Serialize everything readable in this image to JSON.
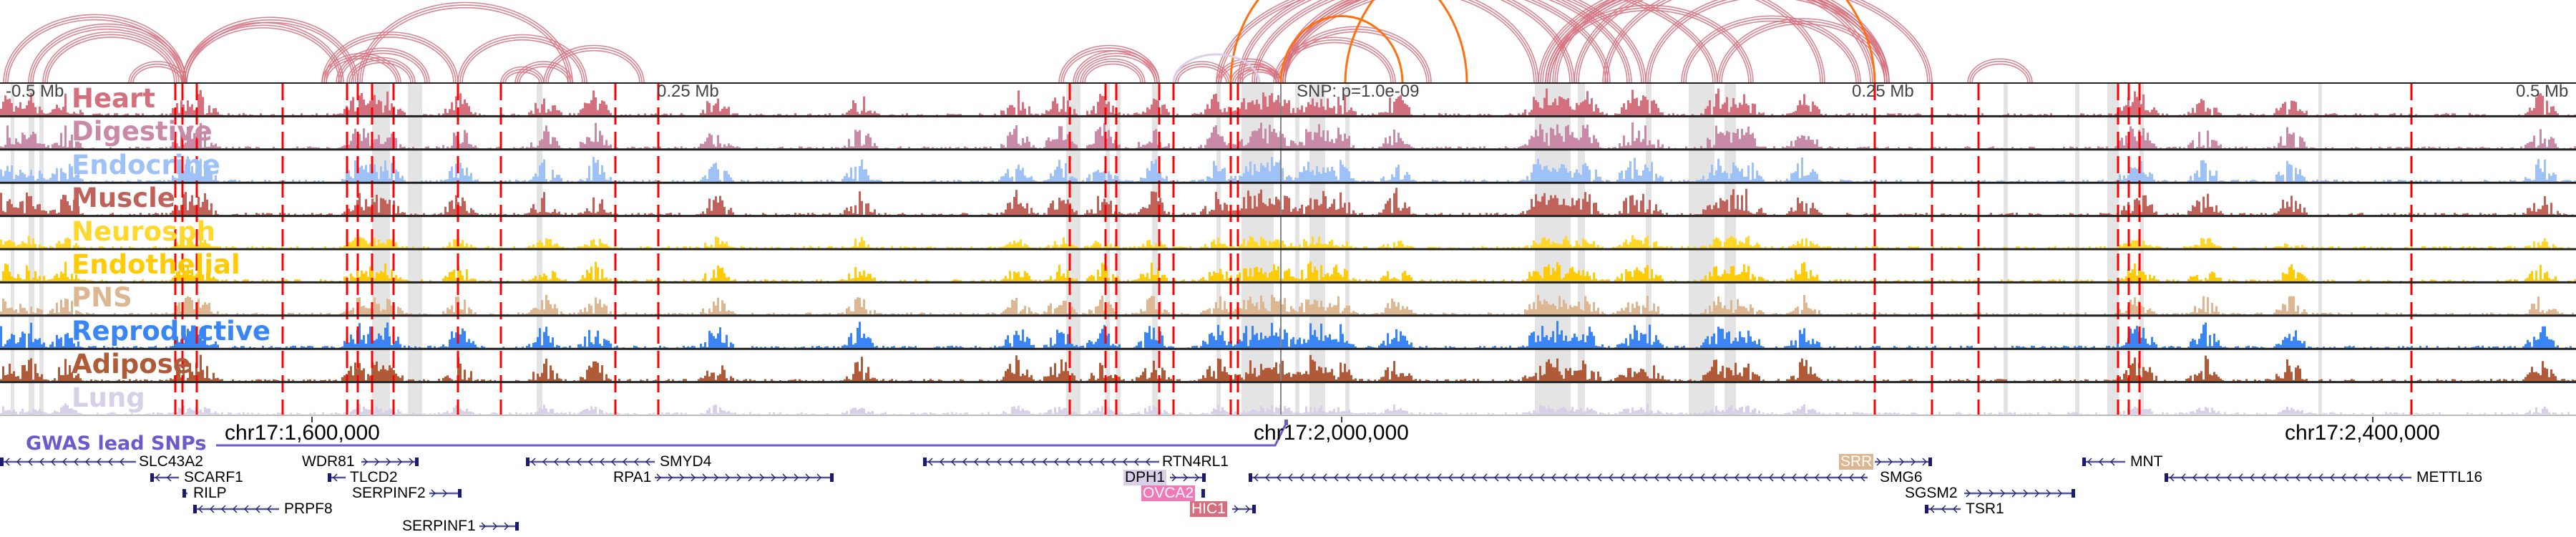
{
  "axis": {
    "left_label": "-0.5 Mb",
    "left_mid_label": "0.25 Mb",
    "snp_label": "SNP: p=1.0e-09",
    "right_mid_label": "0.25 Mb",
    "right_label": "0.5 Mb"
  },
  "tracks": [
    {
      "label": "Heart",
      "color": "#d4707e"
    },
    {
      "label": "Digestive",
      "color": "#c98aa8"
    },
    {
      "label": "Endocrine",
      "color": "#9ec1f7"
    },
    {
      "label": "Muscle",
      "color": "#c0625a"
    },
    {
      "label": "Neurosph",
      "color": "#ffd829"
    },
    {
      "label": "Endothelial",
      "color": "#ffcb05"
    },
    {
      "label": "PNS",
      "color": "#ddb791"
    },
    {
      "label": "Reproductive",
      "color": "#3a85f5"
    },
    {
      "label": "Adipose",
      "color": "#b05a38"
    },
    {
      "label": "Lung",
      "color": "#d8d0e8"
    }
  ],
  "coordinates": [
    "chr17:1,600,000",
    "chr17:2,000,000",
    "chr17:2,400,000"
  ],
  "gwas_label": "GWAS lead SNPs",
  "genes": [
    {
      "name": "SLC43A2",
      "strand": "-"
    },
    {
      "name": "SCARF1",
      "strand": "-"
    },
    {
      "name": "RILP",
      "strand": "-"
    },
    {
      "name": "PRPF8",
      "strand": "-"
    },
    {
      "name": "WDR81",
      "strand": "+"
    },
    {
      "name": "TLCD2",
      "strand": "-"
    },
    {
      "name": "SERPINF2",
      "strand": "+"
    },
    {
      "name": "SERPINF1",
      "strand": "+"
    },
    {
      "name": "SMYD4",
      "strand": "-"
    },
    {
      "name": "RPA1",
      "strand": "+"
    },
    {
      "name": "RTN4RL1",
      "strand": "-"
    },
    {
      "name": "DPH1",
      "strand": "+",
      "highlight": "#d8d0e8"
    },
    {
      "name": "OVCA2",
      "strand": "+",
      "highlight": "#f07ab8"
    },
    {
      "name": "HIC1",
      "strand": "+",
      "highlight": "#d4707e"
    },
    {
      "name": "SMG6",
      "strand": "-"
    },
    {
      "name": "SRR",
      "strand": "+",
      "highlight": "#ddb791"
    },
    {
      "name": "SGSM2",
      "strand": "+"
    },
    {
      "name": "TSR1",
      "strand": "-"
    },
    {
      "name": "MNT",
      "strand": "-"
    },
    {
      "name": "METTL16",
      "strand": "-"
    }
  ],
  "colors": {
    "arc": "#d4707e",
    "arc_highlight": "#ff7010",
    "gwas": "#6a5acd",
    "gene": "#1a1a6e",
    "dashed": "#ff0000"
  }
}
